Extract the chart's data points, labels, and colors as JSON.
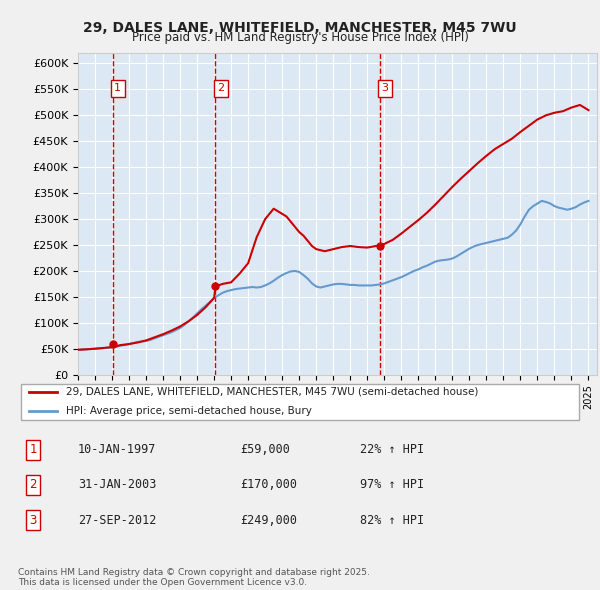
{
  "title": "29, DALES LANE, WHITEFIELD, MANCHESTER, M45 7WU",
  "subtitle": "Price paid vs. HM Land Registry's House Price Index (HPI)",
  "ylabel_ticks": [
    0,
    50000,
    100000,
    150000,
    200000,
    250000,
    300000,
    350000,
    400000,
    450000,
    500000,
    550000,
    600000
  ],
  "ylim": [
    0,
    620000
  ],
  "xlim_start": 1995.0,
  "xlim_end": 2025.5,
  "bg_color": "#dce9f5",
  "plot_bg_color": "#dce9f5",
  "grid_color": "#ffffff",
  "sale_dates": [
    1997.03,
    2003.08,
    2012.74
  ],
  "sale_prices": [
    59000,
    170000,
    249000
  ],
  "sale_labels": [
    "1",
    "2",
    "3"
  ],
  "legend_red": "29, DALES LANE, WHITEFIELD, MANCHESTER, M45 7WU (semi-detached house)",
  "legend_blue": "HPI: Average price, semi-detached house, Bury",
  "table_rows": [
    [
      "1",
      "10-JAN-1997",
      "£59,000",
      "22% ↑ HPI"
    ],
    [
      "2",
      "31-JAN-2003",
      "£170,000",
      "97% ↑ HPI"
    ],
    [
      "3",
      "27-SEP-2012",
      "£249,000",
      "82% ↑ HPI"
    ]
  ],
  "footer": "Contains HM Land Registry data © Crown copyright and database right 2025.\nThis data is licensed under the Open Government Licence v3.0.",
  "red_color": "#cc0000",
  "blue_color": "#6699cc",
  "dashed_color": "#cc0000",
  "hpi_years": [
    1995.0,
    1995.25,
    1995.5,
    1995.75,
    1996.0,
    1996.25,
    1996.5,
    1996.75,
    1997.0,
    1997.25,
    1997.5,
    1997.75,
    1998.0,
    1998.25,
    1998.5,
    1998.75,
    1999.0,
    1999.25,
    1999.5,
    1999.75,
    2000.0,
    2000.25,
    2000.5,
    2000.75,
    2001.0,
    2001.25,
    2001.5,
    2001.75,
    2002.0,
    2002.25,
    2002.5,
    2002.75,
    2003.0,
    2003.25,
    2003.5,
    2003.75,
    2004.0,
    2004.25,
    2004.5,
    2004.75,
    2005.0,
    2005.25,
    2005.5,
    2005.75,
    2006.0,
    2006.25,
    2006.5,
    2006.75,
    2007.0,
    2007.25,
    2007.5,
    2007.75,
    2008.0,
    2008.25,
    2008.5,
    2008.75,
    2009.0,
    2009.25,
    2009.5,
    2009.75,
    2010.0,
    2010.25,
    2010.5,
    2010.75,
    2011.0,
    2011.25,
    2011.5,
    2011.75,
    2012.0,
    2012.25,
    2012.5,
    2012.75,
    2013.0,
    2013.25,
    2013.5,
    2013.75,
    2014.0,
    2014.25,
    2014.5,
    2014.75,
    2015.0,
    2015.25,
    2015.5,
    2015.75,
    2016.0,
    2016.25,
    2016.5,
    2016.75,
    2017.0,
    2017.25,
    2017.5,
    2017.75,
    2018.0,
    2018.25,
    2018.5,
    2018.75,
    2019.0,
    2019.25,
    2019.5,
    2019.75,
    2020.0,
    2020.25,
    2020.5,
    2020.75,
    2021.0,
    2021.25,
    2021.5,
    2021.75,
    2022.0,
    2022.25,
    2022.5,
    2022.75,
    2023.0,
    2023.25,
    2023.5,
    2023.75,
    2024.0,
    2024.25,
    2024.5,
    2024.75,
    2025.0
  ],
  "hpi_values": [
    48000,
    48500,
    49000,
    49500,
    50000,
    50500,
    51000,
    52000,
    53000,
    54000,
    56000,
    57000,
    59000,
    61000,
    63000,
    64000,
    65000,
    67000,
    70000,
    73000,
    76000,
    79000,
    82000,
    86000,
    90000,
    96000,
    103000,
    110000,
    118000,
    126000,
    133000,
    140000,
    148000,
    153000,
    158000,
    161000,
    163000,
    165000,
    166000,
    167000,
    168000,
    169000,
    168000,
    169000,
    172000,
    176000,
    181000,
    187000,
    192000,
    196000,
    199000,
    200000,
    198000,
    192000,
    185000,
    176000,
    170000,
    168000,
    170000,
    172000,
    174000,
    175000,
    175000,
    174000,
    173000,
    173000,
    172000,
    172000,
    172000,
    172000,
    173000,
    174000,
    176000,
    179000,
    182000,
    185000,
    188000,
    192000,
    196000,
    200000,
    203000,
    207000,
    210000,
    214000,
    218000,
    220000,
    221000,
    222000,
    224000,
    228000,
    233000,
    238000,
    243000,
    247000,
    250000,
    252000,
    254000,
    256000,
    258000,
    260000,
    262000,
    264000,
    270000,
    278000,
    290000,
    305000,
    318000,
    325000,
    330000,
    335000,
    333000,
    330000,
    325000,
    322000,
    320000,
    318000,
    320000,
    323000,
    328000,
    332000,
    335000
  ],
  "red_years": [
    1995.0,
    1995.5,
    1996.0,
    1996.5,
    1997.0,
    1997.25,
    1997.5,
    1997.75,
    1998.0,
    1998.5,
    1999.0,
    1999.5,
    2000.0,
    2000.5,
    2001.0,
    2001.5,
    2002.0,
    2002.5,
    2003.0,
    2003.08,
    2003.5,
    2004.0,
    2004.5,
    2005.0,
    2005.5,
    2006.0,
    2006.5,
    2007.0,
    2007.25,
    2007.5,
    2007.75,
    2008.0,
    2008.25,
    2008.5,
    2008.75,
    2009.0,
    2009.5,
    2010.0,
    2010.5,
    2011.0,
    2011.5,
    2012.0,
    2012.5,
    2012.74,
    2013.0,
    2013.5,
    2014.0,
    2014.5,
    2015.0,
    2015.5,
    2016.0,
    2016.5,
    2017.0,
    2017.5,
    2018.0,
    2018.5,
    2019.0,
    2019.5,
    2020.0,
    2020.5,
    2021.0,
    2021.5,
    2022.0,
    2022.5,
    2023.0,
    2023.5,
    2024.0,
    2024.5,
    2025.0
  ],
  "red_values": [
    48000,
    48800,
    50000,
    51500,
    53000,
    55000,
    57000,
    58000,
    59000,
    62000,
    66000,
    72000,
    78000,
    85000,
    93000,
    103000,
    115000,
    130000,
    148000,
    170000,
    175000,
    178000,
    195000,
    215000,
    265000,
    300000,
    320000,
    310000,
    305000,
    295000,
    285000,
    275000,
    268000,
    258000,
    248000,
    242000,
    238000,
    242000,
    246000,
    248000,
    246000,
    245000,
    248000,
    249000,
    252000,
    260000,
    272000,
    285000,
    298000,
    312000,
    328000,
    345000,
    362000,
    378000,
    393000,
    408000,
    422000,
    435000,
    445000,
    455000,
    468000,
    480000,
    492000,
    500000,
    505000,
    508000,
    515000,
    520000,
    510000
  ]
}
